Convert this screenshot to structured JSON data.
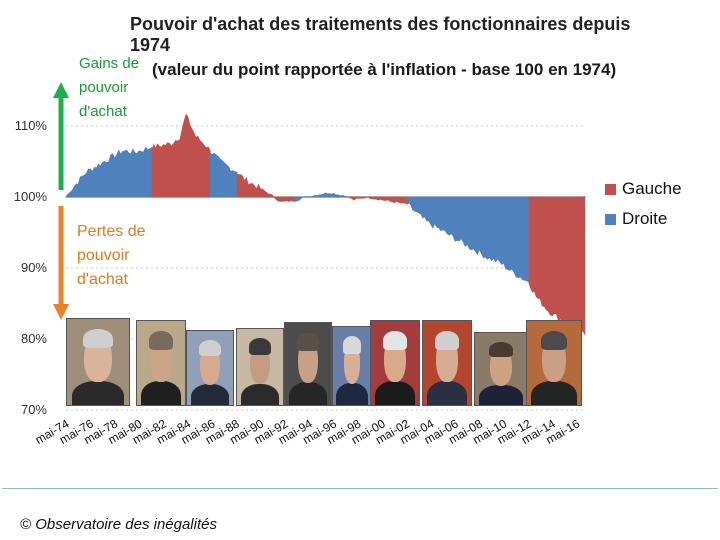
{
  "title": {
    "line1": "Pouvoir d'achat des traitements des fonctionnaires depuis 1974",
    "line2": "(valeur du point rapportée à l'inflation - base 100 en 1974)"
  },
  "annotations": {
    "gain": [
      "Gains de",
      "pouvoir",
      "d'achat"
    ],
    "loss": [
      "Pertes de",
      "pouvoir",
      "d'achat"
    ]
  },
  "legend": [
    {
      "label": "Gauche",
      "color": "#c0504d"
    },
    {
      "label": "Droite",
      "color": "#4f81bd"
    }
  ],
  "copyright": "© Observatoire des inégalités",
  "colors": {
    "gauche": "#c0504d",
    "droite": "#4f81bd",
    "gain_arrow": "#1fae49",
    "loss_arrow": "#e9822a"
  },
  "portraits": [
    {
      "name": "portrait-1",
      "skin": "#d9b39a",
      "hair": "#cfcfcf",
      "suit": "#2a2a2a",
      "bg": "#9f8f7a"
    },
    {
      "name": "portrait-2",
      "skin": "#caa58a",
      "hair": "#7a6a5c",
      "suit": "#1f1f1f",
      "bg": "#b9a889"
    },
    {
      "name": "portrait-3",
      "skin": "#d4ab8e",
      "hair": "#cfcfcf",
      "suit": "#222a3a",
      "bg": "#8fa0b8"
    },
    {
      "name": "portrait-4",
      "skin": "#c69c80",
      "hair": "#3a3a3a",
      "suit": "#2b2b2b",
      "bg": "#c7b9a3"
    },
    {
      "name": "portrait-5",
      "skin": "#c8a087",
      "hair": "#5a5048",
      "suit": "#262626",
      "bg": "#4c4c4c"
    },
    {
      "name": "portrait-6",
      "skin": "#d8b09a",
      "hair": "#d9d9d9",
      "suit": "#1c2740",
      "bg": "#6a7fa8"
    },
    {
      "name": "portrait-7",
      "skin": "#d9a98c",
      "hair": "#e5e5e5",
      "suit": "#1b1b1b",
      "bg": "#a33d3d"
    },
    {
      "name": "portrait-8",
      "skin": "#d6ad92",
      "hair": "#cfcfcf",
      "suit": "#2a2f44",
      "bg": "#b4452f"
    },
    {
      "name": "portrait-9",
      "skin": "#cfa284",
      "hair": "#4a3a30",
      "suit": "#1e2236",
      "bg": "#8a7a68"
    },
    {
      "name": "portrait-10",
      "skin": "#c9a086",
      "hair": "#4b4b4b",
      "suit": "#242424",
      "bg": "#b46a3a"
    }
  ],
  "chart_data": {
    "type": "area",
    "title": "Pouvoir d'achat des traitements des fonctionnaires depuis 1974",
    "subtitle": "(valeur du point rapportée à l'inflation - base 100 en 1974)",
    "ylim": [
      70,
      117
    ],
    "yticks": [
      70,
      80,
      90,
      100,
      110
    ],
    "ytick_labels": [
      "70%",
      "80%",
      "90%",
      "100%",
      "110%"
    ],
    "baseline": 100,
    "xlim": [
      1974.33,
      2017.1
    ],
    "xticks": [
      1974.33,
      1976.33,
      1978.33,
      1980.33,
      1982.33,
      1984.33,
      1986.33,
      1988.33,
      1990.33,
      1992.33,
      1994.33,
      1996.33,
      1998.33,
      2000.33,
      2002.33,
      2004.33,
      2006.33,
      2008.33,
      2010.33,
      2012.33,
      2014.33,
      2016.33
    ],
    "xtick_labels": [
      "mai-74",
      "mai-76",
      "mai-78",
      "mai-80",
      "mai-82",
      "mai-84",
      "mai-86",
      "mai-88",
      "mai-90",
      "mai-92",
      "mai-94",
      "mai-96",
      "mai-98",
      "mai-00",
      "mai-02",
      "mai-04",
      "mai-06",
      "mai-08",
      "mai-10",
      "mai-12",
      "mai-14",
      "mai-16"
    ],
    "grid": true,
    "legend_position": "right",
    "series": [
      {
        "name": "Droite",
        "color": "#4f81bd",
        "x": [
          1974.3,
          1975,
          1976,
          1977,
          1978,
          1979,
          1980,
          1981.4
        ],
        "y": [
          100,
          101.5,
          103.5,
          104.5,
          105.5,
          106.5,
          106.3,
          107
        ]
      },
      {
        "name": "Gauche",
        "color": "#c0504d",
        "x": [
          1981.4,
          1982,
          1983,
          1983.7,
          1984.2,
          1985,
          1985.7,
          1986.2
        ],
        "y": [
          107,
          107.2,
          107.5,
          108.5,
          111.5,
          108.5,
          107.5,
          106.5
        ]
      },
      {
        "name": "Droite",
        "color": "#4f81bd",
        "x": [
          1986.2,
          1987,
          1988.4
        ],
        "y": [
          106.5,
          105,
          103.5
        ]
      },
      {
        "name": "Gauche",
        "color": "#c0504d",
        "x": [
          1988.4,
          1989,
          1990,
          1991,
          1992,
          1993.2
        ],
        "y": [
          103.5,
          102.5,
          101.5,
          100.5,
          99.3,
          99.5
        ]
      },
      {
        "name": "Droite",
        "color": "#4f81bd",
        "x": [
          1993.2,
          1994,
          1995,
          1996,
          1997.4
        ],
        "y": [
          99.5,
          100,
          100.3,
          100.6,
          100.1
        ]
      },
      {
        "name": "Gauche",
        "color": "#c0504d",
        "x": [
          1997.4,
          1998,
          1999,
          2000,
          2001,
          2002.4
        ],
        "y": [
          100.1,
          99.6,
          100,
          99.7,
          99.4,
          99
        ]
      },
      {
        "name": "Droite",
        "color": "#4f81bd",
        "x": [
          2002.4,
          2003,
          2004,
          2005,
          2006,
          2007,
          2008,
          2009,
          2010,
          2011,
          2012.4
        ],
        "y": [
          99,
          98,
          96.5,
          95.5,
          94.5,
          93.5,
          92.5,
          91.5,
          90.8,
          89.5,
          88
        ]
      },
      {
        "name": "Gauche",
        "color": "#c0504d",
        "x": [
          2012.4,
          2013,
          2014,
          2015,
          2016,
          2017
        ],
        "y": [
          88,
          86,
          84,
          82.8,
          81.6,
          80.6
        ]
      }
    ]
  }
}
